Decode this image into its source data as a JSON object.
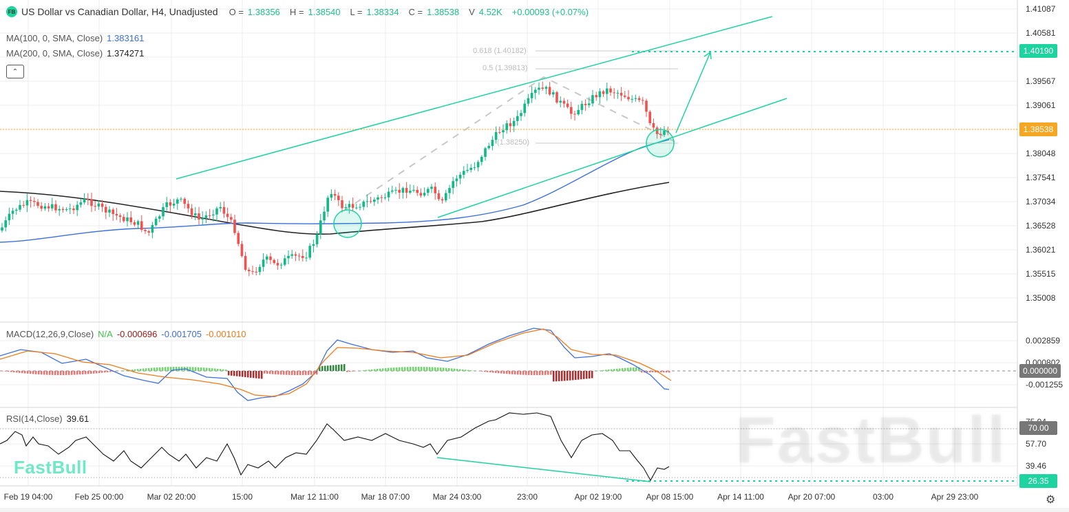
{
  "header": {
    "badge": "FB",
    "title": "US Dollar vs Canadian Dollar, H4, Unadjusted",
    "ohlc": [
      {
        "label": "O =",
        "value": "1.38356"
      },
      {
        "label": "H =",
        "value": "1.38540"
      },
      {
        "label": "L =",
        "value": "1.38334"
      },
      {
        "label": "C =",
        "value": "1.38538"
      }
    ],
    "volume_label": "V",
    "volume_value": "4.52K",
    "change": "+0.00093 (+0.07%)"
  },
  "indicators": {
    "ma100": {
      "label": "MA(100, 0, SMA, Close)",
      "value": "1.383161",
      "color": "#3b6fe0"
    },
    "ma200": {
      "label": "MA(200, 0, SMA, Close)",
      "value": "1.374271",
      "color": "#222222"
    },
    "collapse_icon": "chevron-up-icon"
  },
  "macd": {
    "label": "MACD(12,26,9,Close)",
    "hist": "N/A",
    "v1": "-0.000696",
    "v2": "-0.001705",
    "v3": "-0.001010"
  },
  "rsi": {
    "label": "RSI(14,Close)",
    "value": "39.61"
  },
  "price_axis": {
    "ticks": [
      "1.41087",
      "1.40581",
      "1.40074",
      "1.39567",
      "1.39061",
      "1.38555",
      "1.38048",
      "1.37541",
      "1.37034",
      "1.36528",
      "1.36021",
      "1.35515",
      "1.35008"
    ],
    "target_tag": "1.40190",
    "current_tag": "1.38538"
  },
  "macd_axis": {
    "ticks": [
      "0.002859",
      "0.000802",
      "-0.001255"
    ],
    "zero_tag": "0.000000"
  },
  "rsi_axis": {
    "ticks": [
      "75.94",
      "57.70",
      "39.46"
    ],
    "tag_70": "70.00",
    "tag_low": "26.35"
  },
  "fib": {
    "f618": "0.618 (1.40182)",
    "f05": "0.5 (1.39813)",
    "f0": "(1.38250)"
  },
  "time_axis": [
    "Feb 19 04:00",
    "Feb 25 00:00",
    "Mar 02 20:00",
    "15:00",
    "Mar 12 11:00",
    "Mar 18 07:00",
    "Mar 24 03:00",
    "23:00",
    "Apr 02 19:00",
    "Apr 08 15:00",
    "Apr 14 11:00",
    "Apr 20 07:00",
    "03:00",
    "Apr 29 23:00"
  ],
  "watermark": "FastBull",
  "colors": {
    "up": "#12b886",
    "down": "#ef5350",
    "accent": "#1dd3a0",
    "current": "#f5a623",
    "ma100": "#3b6fe0",
    "ma200": "#222222",
    "macd_line": "#3b6fe0",
    "signal_line": "#f07a1a"
  },
  "chart_data": [
    {
      "type": "candlestick",
      "title": "US Dollar vs Canadian Dollar, H4, Unadjusted",
      "ylim": [
        1.346,
        1.413
      ],
      "x_ticks": [
        "Feb 19 04:00",
        "Feb 25 00:00",
        "Mar 02 20:00",
        "15:00",
        "Mar 12 11:00",
        "Mar 18 07:00",
        "Mar 24 03:00",
        "23:00",
        "Apr 02 19:00",
        "Apr 08 15:00",
        "Apr 14 11:00",
        "Apr 20 07:00",
        "03:00",
        "Apr 29 23:00"
      ],
      "close_path_approx": [
        {
          "x": "Feb 19 04:00",
          "y": 1.3685
        },
        {
          "x": "Feb 25 00:00",
          "y": 1.3712
        },
        {
          "x": "Mar 02 20:00",
          "y": 1.368
        },
        {
          "x": "15:00",
          "y": 1.356
        },
        {
          "x": "Mar 12 11:00",
          "y": 1.372
        },
        {
          "x": "Mar 18 07:00",
          "y": 1.373
        },
        {
          "x": "Mar 24 03:00",
          "y": 1.376
        },
        {
          "x": "23:00",
          "y": 1.395
        },
        {
          "x": "Apr 02 19:00",
          "y": 1.393
        },
        {
          "x": "Apr 08 15:00",
          "y": 1.38538
        }
      ],
      "series": [
        {
          "name": "MA(100)",
          "last": 1.383161
        },
        {
          "name": "MA(200)",
          "last": 1.374271
        }
      ],
      "annotations": [
        "0.618 (1.40182)",
        "0.5 (1.39813)",
        "(1.38250)",
        "target 1.40190",
        "current 1.38538"
      ]
    },
    {
      "type": "line",
      "title": "MACD(12,26,9,Close)",
      "series": [
        {
          "name": "MACD",
          "last": -0.001705
        },
        {
          "name": "Signal",
          "last": -0.00101
        },
        {
          "name": "Histogram",
          "last": -0.000696
        }
      ],
      "y_ticks": [
        0.002859,
        0.000802,
        0.0,
        -0.001255
      ]
    },
    {
      "type": "line",
      "title": "RSI(14,Close)",
      "series": [
        {
          "name": "RSI",
          "last": 39.61
        }
      ],
      "y_ticks": [
        75.94,
        70.0,
        57.7,
        39.46,
        26.35
      ]
    }
  ]
}
